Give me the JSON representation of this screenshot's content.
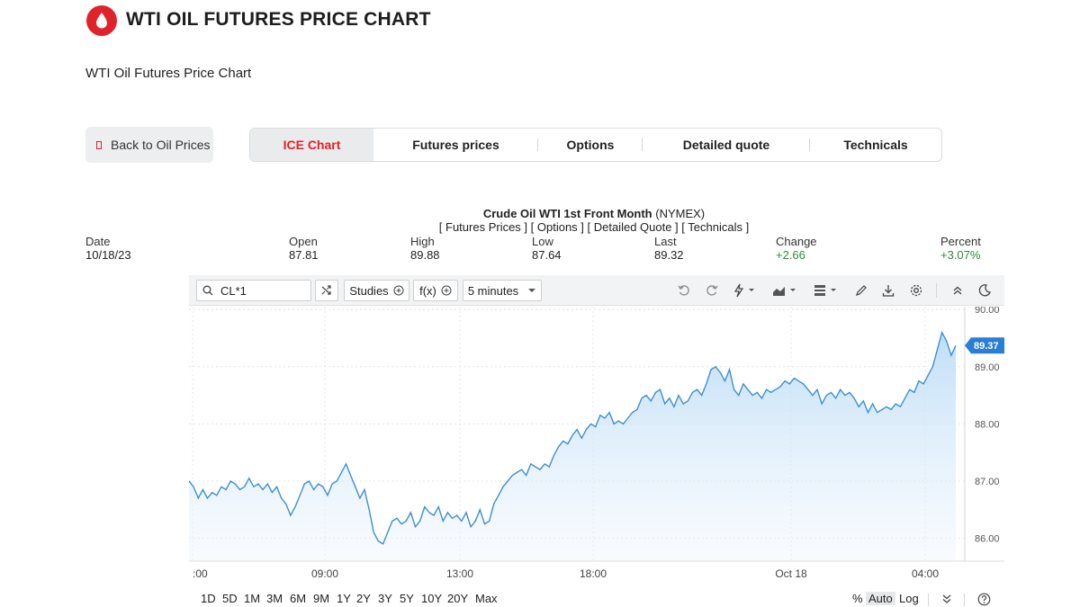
{
  "header": {
    "title": "WTI OIL FUTURES PRICE CHART",
    "subtitle": "WTI Oil Futures Price Chart"
  },
  "nav": {
    "back_label": "Back to Oil Prices",
    "tabs": [
      {
        "label": "ICE Chart",
        "active": true
      },
      {
        "label": "Futures prices",
        "active": false
      },
      {
        "label": "Options",
        "active": false
      },
      {
        "label": "Detailed quote",
        "active": false
      },
      {
        "label": "Technicals",
        "active": false
      }
    ]
  },
  "quote": {
    "name": "Crude Oil WTI 1st Front Month",
    "exchange": "(NYMEX)",
    "links": "[ Futures Prices ] [ Options ] [ Detailed Quote ] [ Technicals ]",
    "fields": {
      "date": {
        "label": "Date",
        "value": "10/18/23"
      },
      "open": {
        "label": "Open",
        "value": "87.81"
      },
      "high": {
        "label": "High",
        "value": "89.88"
      },
      "low": {
        "label": "Low",
        "value": "87.64"
      },
      "last": {
        "label": "Last",
        "value": "89.32"
      },
      "change": {
        "label": "Change",
        "value": "+2.66"
      },
      "percent": {
        "label": "Percent",
        "value": "+3.07%"
      }
    }
  },
  "toolbar": {
    "symbol": "CL*1",
    "studies_label": "Studies",
    "fx_label": "f(x)",
    "interval_label": "5 minutes"
  },
  "chart_data": {
    "type": "area",
    "ylim": [
      85.6,
      90.05
    ],
    "y_ticks": [
      "90.00",
      "89.00",
      "88.00",
      "87.00",
      "86.00"
    ],
    "x_ticks": [
      ":00",
      "09:00",
      "13:00",
      "18:00",
      "Oct 18",
      "04:00"
    ],
    "last_value_label": "89.37",
    "series": [
      {
        "values": [
          87.0,
          86.9,
          86.7,
          86.85,
          86.7,
          86.8,
          86.75,
          86.9,
          86.85,
          87.0,
          86.95,
          86.85,
          86.9,
          87.05,
          86.9,
          86.95,
          86.85,
          86.95,
          86.8,
          86.9,
          86.7,
          86.6,
          86.4,
          86.55,
          86.75,
          86.95,
          87.0,
          86.85,
          86.95,
          86.9,
          86.75,
          86.95,
          87.0,
          87.15,
          87.3,
          87.1,
          86.9,
          86.7,
          86.85,
          86.5,
          86.1,
          85.95,
          85.9,
          86.1,
          86.3,
          86.35,
          86.25,
          86.3,
          86.45,
          86.2,
          86.3,
          86.55,
          86.45,
          86.4,
          86.55,
          86.3,
          86.45,
          86.35,
          86.4,
          86.3,
          86.45,
          86.2,
          86.3,
          86.5,
          86.25,
          86.3,
          86.6,
          86.75,
          86.9,
          87.0,
          87.1,
          87.15,
          87.2,
          87.1,
          87.3,
          87.25,
          87.2,
          87.3,
          87.25,
          87.45,
          87.6,
          87.7,
          87.65,
          87.8,
          87.9,
          87.75,
          87.9,
          88.0,
          87.95,
          88.15,
          88.1,
          88.2,
          88.0,
          88.05,
          88.0,
          88.1,
          88.2,
          88.25,
          88.45,
          88.5,
          88.4,
          88.55,
          88.6,
          88.35,
          88.45,
          88.3,
          88.5,
          88.35,
          88.4,
          88.55,
          88.6,
          88.5,
          88.7,
          88.95,
          89.0,
          88.9,
          88.75,
          88.95,
          88.6,
          88.5,
          88.7,
          88.6,
          88.5,
          88.55,
          88.45,
          88.6,
          88.55,
          88.6,
          88.65,
          88.75,
          88.7,
          88.8,
          88.75,
          88.7,
          88.6,
          88.5,
          88.6,
          88.35,
          88.5,
          88.55,
          88.45,
          88.6,
          88.5,
          88.55,
          88.45,
          88.3,
          88.4,
          88.2,
          88.35,
          88.2,
          88.25,
          88.3,
          88.25,
          88.35,
          88.3,
          88.45,
          88.6,
          88.55,
          88.75,
          88.7,
          88.85,
          89.0,
          89.3,
          89.6,
          89.45,
          89.2,
          89.37
        ]
      }
    ]
  },
  "ranges": [
    "1D",
    "5D",
    "1M",
    "3M",
    "6M",
    "9M",
    "1Y",
    "2Y",
    "3Y",
    "5Y",
    "10Y",
    "20Y",
    "Max"
  ],
  "scale_options": [
    {
      "label": "%",
      "selected": false
    },
    {
      "label": "Auto",
      "selected": true
    },
    {
      "label": "Log",
      "selected": false
    }
  ],
  "colors": {
    "brand_red": "#e0222b",
    "line": "#3d8fd6",
    "price_tag": "#2a7fd4",
    "up": "#2b8a3e"
  }
}
